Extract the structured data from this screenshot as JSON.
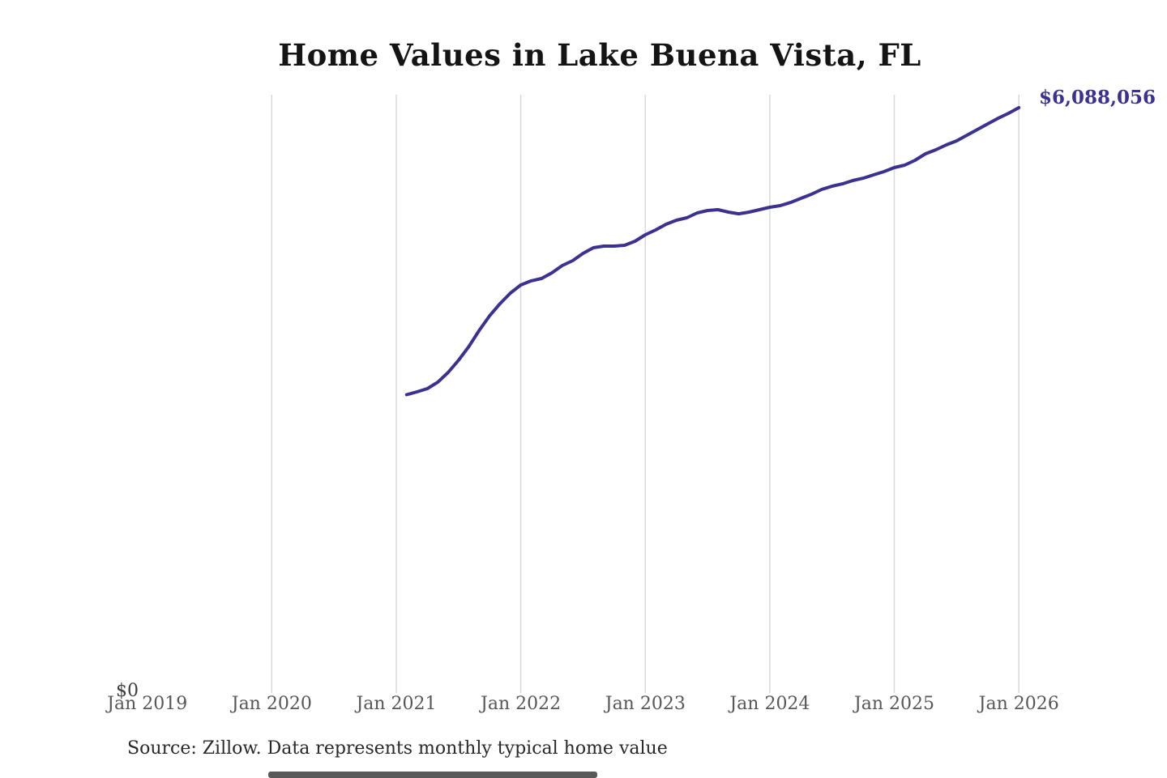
{
  "colors": {
    "accent": "#3a3190",
    "grid": "#d9d9d9",
    "axis_text": "#575757",
    "title_text": "#141414",
    "source_text": "#282828"
  },
  "chart_data": {
    "type": "line",
    "title": "Home Values in Lake Buena Vista, FL",
    "xlabel": "",
    "ylabel": "",
    "x": [
      "2021-02",
      "2021-03",
      "2021-04",
      "2021-05",
      "2021-06",
      "2021-07",
      "2021-08",
      "2021-09",
      "2021-10",
      "2021-11",
      "2021-12",
      "2022-01",
      "2022-02",
      "2022-03",
      "2022-04",
      "2022-05",
      "2022-06",
      "2022-07",
      "2022-08",
      "2022-09",
      "2022-10",
      "2022-11",
      "2022-12",
      "2023-01",
      "2023-02",
      "2023-03",
      "2023-04",
      "2023-05",
      "2023-06",
      "2023-07",
      "2023-08",
      "2023-09",
      "2023-10",
      "2023-11",
      "2023-12",
      "2024-01",
      "2024-02",
      "2024-03",
      "2024-04",
      "2024-05",
      "2024-06",
      "2024-07",
      "2024-08",
      "2024-09",
      "2024-10",
      "2024-11",
      "2024-12",
      "2025-01",
      "2025-02",
      "2025-03",
      "2025-04",
      "2025-05",
      "2025-06",
      "2025-07",
      "2025-08",
      "2025-09",
      "2025-10",
      "2025-11",
      "2025-12",
      "2026-01"
    ],
    "values": [
      3099000,
      3128000,
      3162000,
      3229000,
      3331000,
      3457000,
      3601000,
      3769000,
      3921000,
      4047000,
      4157000,
      4241000,
      4284000,
      4309000,
      4368000,
      4444000,
      4494000,
      4570000,
      4629000,
      4646000,
      4646000,
      4655000,
      4697000,
      4764000,
      4815000,
      4874000,
      4916000,
      4941000,
      4992000,
      5017000,
      5026000,
      5000000,
      4983000,
      5000000,
      5026000,
      5051000,
      5068000,
      5101000,
      5144000,
      5186000,
      5236000,
      5270000,
      5295000,
      5329000,
      5354000,
      5388000,
      5422000,
      5464000,
      5489000,
      5540000,
      5607000,
      5650000,
      5700000,
      5742000,
      5801000,
      5860000,
      5919000,
      5978000,
      6029000,
      6088056
    ],
    "x_tick_labels": [
      "Jan 2019",
      "Jan 2020",
      "Jan 2021",
      "Jan 2022",
      "Jan 2023",
      "Jan 2024",
      "Jan 2025",
      "Jan 2026"
    ],
    "x_gridline_years": [
      2020,
      2021,
      2022,
      2023,
      2024,
      2025,
      2026
    ],
    "y_tick_labels": [
      "$0"
    ],
    "ylim": [
      0,
      6300000
    ],
    "grid": "vertical-only",
    "legend_position": "none",
    "end_annotation": "$6,088,056",
    "source_note": "Source: Zillow. Data represents monthly typical home value"
  }
}
